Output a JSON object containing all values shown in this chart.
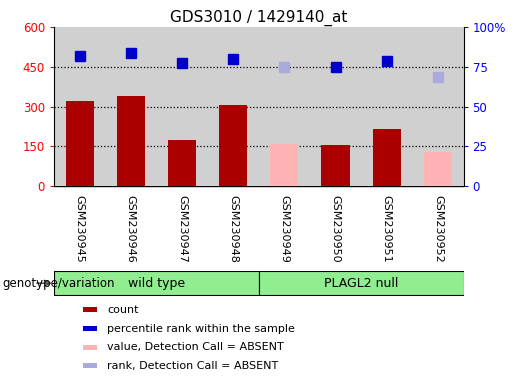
{
  "title": "GDS3010 / 1429140_at",
  "samples": [
    "GSM230945",
    "GSM230946",
    "GSM230947",
    "GSM230948",
    "GSM230949",
    "GSM230950",
    "GSM230951",
    "GSM230952"
  ],
  "bar_values": [
    320,
    340,
    175,
    305,
    null,
    155,
    215,
    null
  ],
  "bar_absent_values": [
    null,
    null,
    null,
    null,
    160,
    null,
    null,
    130
  ],
  "rank_values": [
    490,
    500,
    465,
    480,
    null,
    450,
    470,
    null
  ],
  "rank_absent_values": [
    null,
    null,
    null,
    null,
    450,
    null,
    null,
    410
  ],
  "bar_color": "#aa0000",
  "bar_absent_color": "#ffb3b3",
  "rank_color": "#0000cc",
  "rank_absent_color": "#aaaadd",
  "left_ylim": [
    0,
    600
  ],
  "right_ylim": [
    0,
    100
  ],
  "left_yticks": [
    0,
    150,
    300,
    450,
    600
  ],
  "right_yticks": [
    0,
    25,
    50,
    75,
    100
  ],
  "right_yticklabels": [
    "0",
    "25",
    "50",
    "75",
    "100%"
  ],
  "left_yticklabels": [
    "0",
    "150",
    "300",
    "450",
    "600"
  ],
  "group_labels": [
    "wild type",
    "PLAGL2 null"
  ],
  "group_starts": [
    0,
    4
  ],
  "group_ends": [
    4,
    8
  ],
  "group_color": "#90ee90",
  "group_label": "genotype/variation",
  "legend_items": [
    {
      "label": "count",
      "color": "#aa0000"
    },
    {
      "label": "percentile rank within the sample",
      "color": "#0000cc"
    },
    {
      "label": "value, Detection Call = ABSENT",
      "color": "#ffb3b3"
    },
    {
      "label": "rank, Detection Call = ABSENT",
      "color": "#aaaadd"
    }
  ],
  "bar_width": 0.55,
  "rank_marker_size": 7,
  "dotted_line_color": "#000000",
  "col_bg_color": "#d0d0d0",
  "plot_bg_color": "#ffffff",
  "tick_label_bg": "#d0d0d0"
}
